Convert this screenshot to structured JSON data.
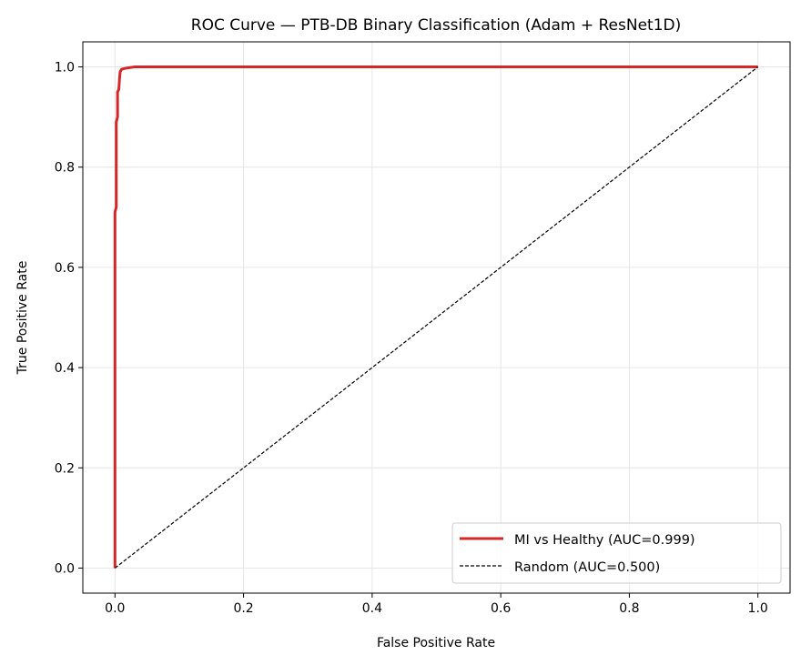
{
  "chart_data": {
    "type": "line",
    "title": "ROC Curve — PTB-DB Binary Classification (Adam + ResNet1D)",
    "xlabel": "False Positive Rate",
    "ylabel": "True Positive Rate",
    "xlim": [
      -0.05,
      1.05
    ],
    "ylim": [
      -0.05,
      1.05
    ],
    "xticks": [
      "0.0",
      "0.2",
      "0.4",
      "0.6",
      "0.8",
      "1.0"
    ],
    "yticks": [
      "0.0",
      "0.2",
      "0.4",
      "0.6",
      "0.8",
      "1.0"
    ],
    "grid": true,
    "legend_position": "bottom-right",
    "series": [
      {
        "name": "MI vs Healthy (AUC=0.999)",
        "color": "#d62728",
        "style": "solid",
        "x": [
          0,
          0,
          0.002,
          0.002,
          0.004,
          0.004,
          0.006,
          0.007,
          0.008,
          0.01,
          0.015,
          0.02,
          0.03,
          1.0
        ],
        "y": [
          0,
          0.71,
          0.72,
          0.89,
          0.9,
          0.95,
          0.955,
          0.975,
          0.99,
          0.995,
          0.997,
          0.998,
          1.0,
          1.0
        ]
      },
      {
        "name": "Random (AUC=0.500)",
        "color": "#000000",
        "style": "dashed",
        "x": [
          0,
          1
        ],
        "y": [
          0,
          1
        ]
      }
    ]
  }
}
